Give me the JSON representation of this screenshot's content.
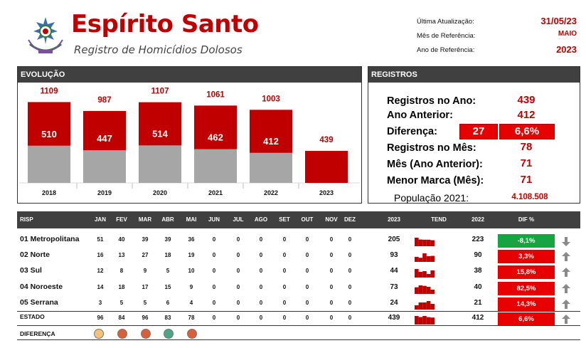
{
  "header": {
    "title": "Espírito Santo",
    "subtitle": "Registro de Homicídios Dolosos",
    "meta": [
      {
        "label": "Última Atualização:",
        "value": "31/05/23"
      },
      {
        "label": "Mês de Referência:",
        "value": "MAIO"
      },
      {
        "label": "Ano de Referência:",
        "value": "2023"
      }
    ]
  },
  "evolucao": {
    "title": "EVOLUÇÃO",
    "chart_data": {
      "type": "bar",
      "categories": [
        "2018",
        "2019",
        "2020",
        "2021",
        "2022",
        "2023"
      ],
      "series": [
        {
          "values": [
            510,
            447,
            514,
            462,
            412,
            0
          ],
          "color": "#a6a6a6"
        },
        {
          "values": [
            599,
            540,
            593,
            599,
            591,
            439
          ],
          "color": "#c00000"
        }
      ],
      "totals": [
        1109,
        987,
        1107,
        1061,
        1003,
        439
      ],
      "inner_labels": [
        "510",
        "447",
        "514",
        "462",
        "412",
        ""
      ],
      "total_labels": [
        "1109",
        "987",
        "1107",
        "1061",
        "1003",
        "439"
      ],
      "ylim": [
        0,
        1250
      ]
    }
  },
  "registros": {
    "title": "REGISTROS",
    "rows": [
      {
        "label": "Registros no Ano:",
        "value": "439"
      },
      {
        "label": "Ano Anterior:",
        "value": "412"
      },
      {
        "label": "Diferença:",
        "value": ""
      },
      {
        "label": "Registros no Mês:",
        "value": "78"
      },
      {
        "label": "Mês (Ano Anterior):",
        "value": "71"
      },
      {
        "label": "Menor Marca (Mês):",
        "value": "71"
      }
    ],
    "diferenca_abs": "27",
    "diferenca_pct": "6,6%",
    "populacao_label": "População 2021:",
    "populacao_value": "4.108.508"
  },
  "table": {
    "headers": {
      "risp": "RISP",
      "months": [
        "JAN",
        "FEV",
        "MAR",
        "ABR",
        "MAI",
        "JUN",
        "JUL",
        "AGO",
        "SET",
        "OUT",
        "NOV",
        "DEZ"
      ],
      "y2023": "2023",
      "tend": "TEND",
      "y2022": "2022",
      "dif": "DIF %"
    },
    "rows": [
      {
        "label": "01 Metropolitana",
        "months": [
          "51",
          "40",
          "39",
          "39",
          "36",
          "0",
          "0",
          "0",
          "0",
          "0",
          "0",
          "0"
        ],
        "y2023": "205",
        "y2022": "223",
        "dif": "-8,1%",
        "dif_color": "#19a442",
        "trend": "down",
        "trend_values": [
          51,
          40,
          39,
          39,
          36
        ]
      },
      {
        "label": "02 Norte",
        "months": [
          "16",
          "13",
          "27",
          "18",
          "19",
          "0",
          "0",
          "0",
          "0",
          "0",
          "0",
          "0"
        ],
        "y2023": "93",
        "y2022": "90",
        "dif": "3,3%",
        "dif_color": "#e60000",
        "trend": "up",
        "trend_values": [
          16,
          13,
          27,
          18,
          19
        ]
      },
      {
        "label": "03 Sul",
        "months": [
          "12",
          "8",
          "9",
          "5",
          "10",
          "0",
          "0",
          "0",
          "0",
          "0",
          "0",
          "0"
        ],
        "y2023": "44",
        "y2022": "38",
        "dif": "15,8%",
        "dif_color": "#e60000",
        "trend": "up",
        "trend_values": [
          12,
          8,
          9,
          5,
          10
        ]
      },
      {
        "label": "04 Noroeste",
        "months": [
          "14",
          "18",
          "17",
          "15",
          "9",
          "0",
          "0",
          "0",
          "0",
          "0",
          "0",
          "0"
        ],
        "y2023": "73",
        "y2022": "40",
        "dif": "82,5%",
        "dif_color": "#e60000",
        "trend": "up",
        "trend_values": [
          14,
          18,
          17,
          15,
          9
        ]
      },
      {
        "label": "05 Serrana",
        "months": [
          "3",
          "5",
          "5",
          "6",
          "4",
          "0",
          "0",
          "0",
          "0",
          "0",
          "0",
          "0"
        ],
        "y2023": "24",
        "y2022": "21",
        "dif": "14,3%",
        "dif_color": "#e60000",
        "trend": "up",
        "trend_values": [
          3,
          5,
          5,
          6,
          4
        ]
      }
    ],
    "total": {
      "label": "ESTADO",
      "months": [
        "96",
        "84",
        "96",
        "83",
        "78",
        "0",
        "0",
        "0",
        "0",
        "0",
        "0",
        "0"
      ],
      "y2023": "439",
      "y2022": "412",
      "dif": "6,6%",
      "dif_color": "#e60000",
      "trend": "up",
      "trend_values": [
        96,
        84,
        96,
        83,
        78
      ]
    },
    "diferenca_label": "DIFERENÇA",
    "diferenca_colors": [
      "#f0c27b",
      "#d95f3b",
      "#d95f3b",
      "#4fa387",
      "#d95f3b"
    ]
  }
}
